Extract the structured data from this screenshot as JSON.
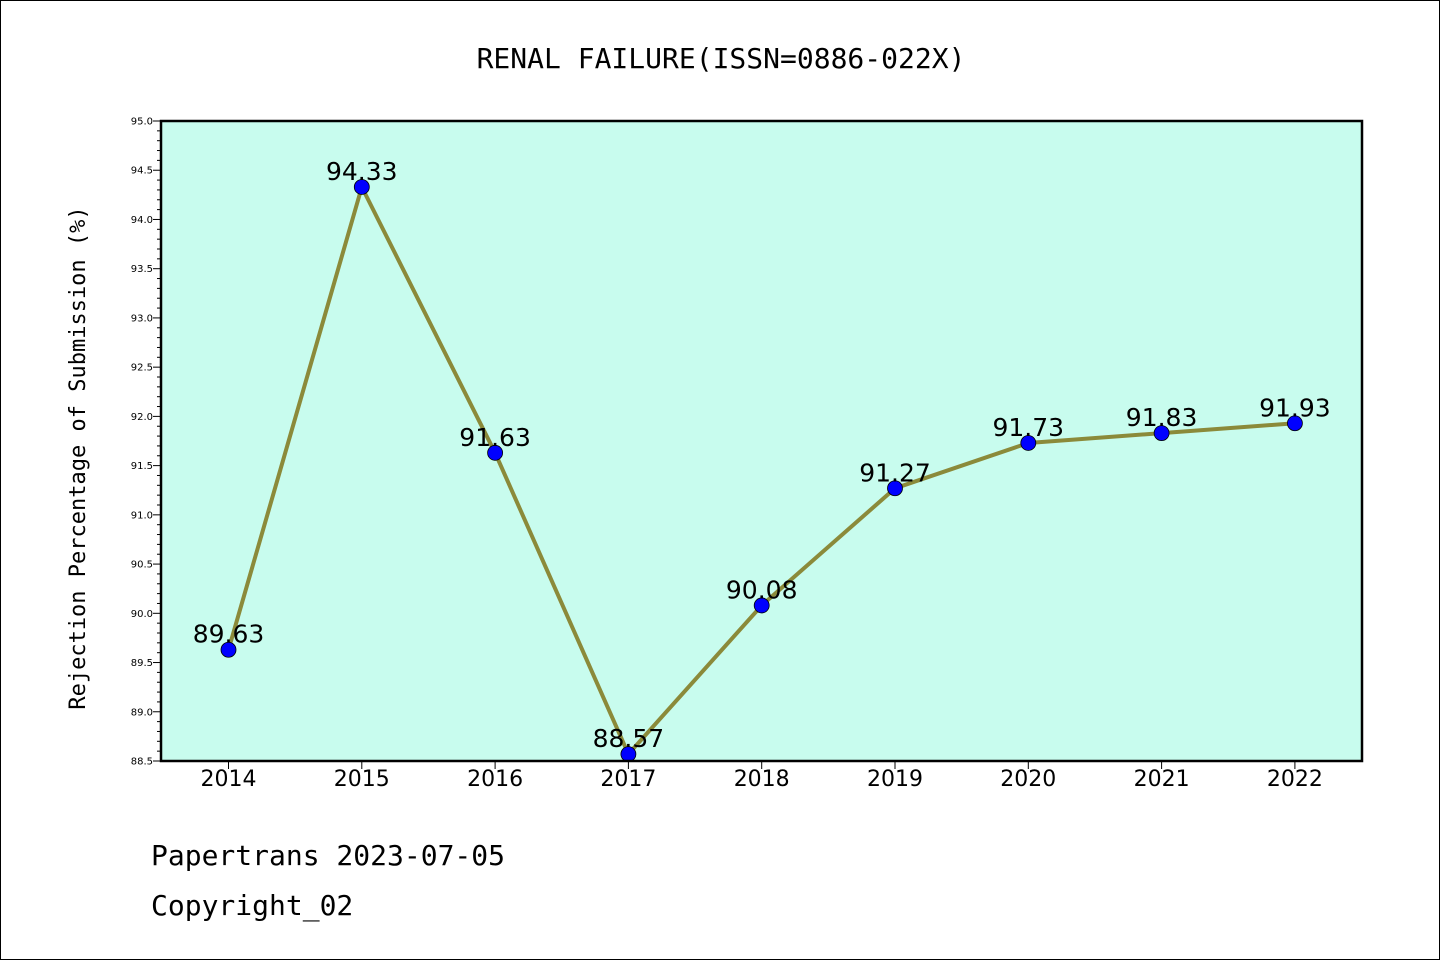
{
  "chart_data": {
    "type": "line",
    "title": "RENAL FAILURE(ISSN=0886-022X)",
    "xlabel": "",
    "ylabel": "Rejection Percentage of Submission (%)",
    "categories": [
      "2014",
      "2015",
      "2016",
      "2017",
      "2018",
      "2019",
      "2020",
      "2021",
      "2022"
    ],
    "series": [
      {
        "values": [
          89.63,
          94.33,
          91.63,
          88.57,
          90.08,
          91.27,
          91.73,
          91.83,
          91.93
        ],
        "labels": [
          "89.63",
          "94.33",
          "91.63",
          "88.57",
          "90.08",
          "91.27",
          "91.73",
          "91.83",
          "91.93"
        ]
      }
    ],
    "ylim": [
      88.5,
      95.0
    ],
    "yticks": [
      "88.5",
      "89.0",
      "89.5",
      "90.0",
      "90.5",
      "91.0",
      "91.5",
      "92.0",
      "92.5",
      "93.0",
      "93.5",
      "94.0",
      "94.5",
      "95.0"
    ],
    "grid": false,
    "colors": {
      "plot_background": "#c8fcee",
      "line": "#8b8a3a",
      "marker": "#0000ff"
    }
  },
  "footer": {
    "source": "Papertrans 2023-07-05",
    "copyright": "Copyright_02"
  }
}
